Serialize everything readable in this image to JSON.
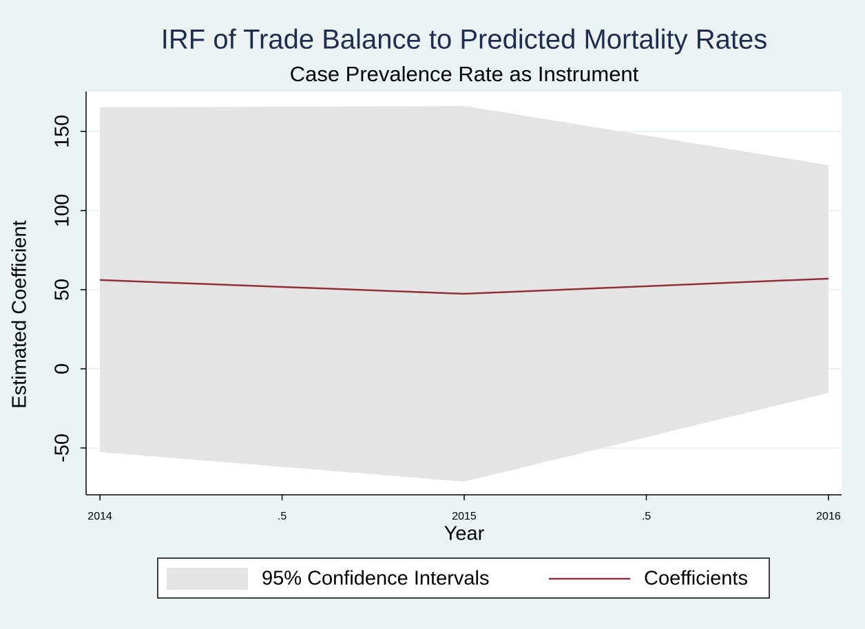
{
  "chart_data": {
    "type": "line",
    "title": "IRF of Trade Balance to Predicted Mortality Rates",
    "subtitle": "Case Prevalence Rate as Instrument",
    "x_label": "Year",
    "y_label": "Estimated Coefficient",
    "x": [
      2014,
      2015,
      2016
    ],
    "band": {
      "name": "95% Confidence Intervals",
      "color": "#e4e4e4",
      "upper": [
        165.2,
        166.1,
        128.7
      ],
      "lower": [
        -52.6,
        -71.3,
        -15.2
      ]
    },
    "series": [
      {
        "name": "Coefficients",
        "color": "#8f2f37",
        "values": [
          56.1,
          47.4,
          57.0
        ]
      }
    ],
    "xlim": [
      2013.962,
      2016.036
    ],
    "ylim": [
      -79.6,
      175.2
    ],
    "xticks": [
      2014,
      {
        "value": 2014.5,
        "label": ".5"
      },
      2015,
      {
        "value": 2015.5,
        "label": ".5"
      },
      2016
    ],
    "yticks": [
      -50,
      0,
      50,
      100,
      150
    ],
    "grid": true,
    "legend": "bottom"
  }
}
